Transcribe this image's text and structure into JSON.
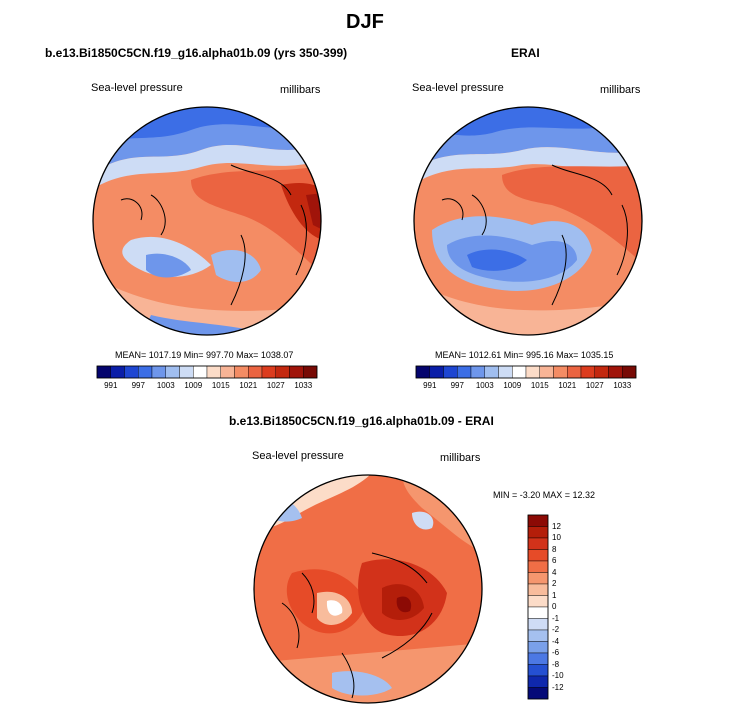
{
  "figure": {
    "title": "DJF"
  },
  "panels": [
    {
      "title": "b.e13.Bi1850C5CN.f19_g16.alpha01b.09 (yrs 350-399)",
      "left_label": "Sea-level pressure",
      "right_label": "millibars",
      "stats": "MEAN= 1017.19   Min= 997.70   Max= 1038.07"
    },
    {
      "title": "ERAI",
      "left_label": "Sea-level pressure",
      "right_label": "millibars",
      "stats": "MEAN= 1012.61   Min= 995.16   Max= 1035.15"
    },
    {
      "title": "b.e13.Bi1850C5CN.f19_g16.alpha01b.09 - ERAI",
      "left_label": "Sea-level pressure",
      "right_label": "millibars",
      "stats": "MIN =  -3.20 MAX =  12.32"
    }
  ],
  "colorbar_main": {
    "labels": [
      "991",
      "997",
      "1003",
      "1009",
      "1015",
      "1021",
      "1027",
      "1033"
    ],
    "colors": [
      "#05056e",
      "#0a1ea8",
      "#1e46d2",
      "#3c6ee6",
      "#6e96eb",
      "#a0bef0",
      "#cddcf5",
      "#ffffff",
      "#fcdcc8",
      "#f8b496",
      "#f48c64",
      "#eb6441",
      "#dc3c1e",
      "#c3280f",
      "#a0140a",
      "#780a05"
    ]
  },
  "colorbar_diff": {
    "labels": [
      "12",
      "10",
      "8",
      "6",
      "4",
      "2",
      "1",
      "0",
      "-1",
      "-2",
      "-4",
      "-6",
      "-8",
      "-10",
      "-12"
    ],
    "colors": [
      "#8c0a05",
      "#b41e0a",
      "#d2321a",
      "#e64b28",
      "#f06e46",
      "#f5966e",
      "#f8bc9c",
      "#fcdcc8",
      "#ffffff",
      "#cfdcf5",
      "#a5c0ef",
      "#7aa0ea",
      "#4c78e4",
      "#2550d2",
      "#0f28ad",
      "#050a78"
    ]
  }
}
